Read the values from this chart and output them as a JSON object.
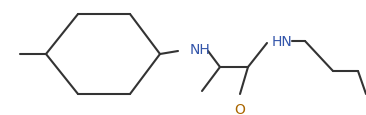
{
  "bg_color": "#ffffff",
  "line_color": "#333333",
  "nh_color": "#3355aa",
  "o_color": "#aa6600",
  "line_width": 1.6,
  "font_size": 9.5,
  "fig_width": 3.66,
  "fig_height": 1.16,
  "dpi": 100,
  "xlim": [
    0,
    10.5
  ],
  "ylim": [
    0,
    3.2
  ]
}
